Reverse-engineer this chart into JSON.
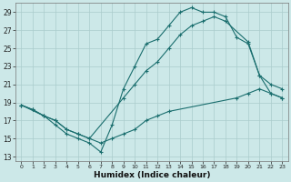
{
  "title": "",
  "xlabel": "Humidex (Indice chaleur)",
  "bg_color": "#cce8e8",
  "grid_color": "#aacccc",
  "line_color": "#1a6e6e",
  "xlim": [
    -0.5,
    23.5
  ],
  "ylim": [
    12.5,
    30.0
  ],
  "xticks": [
    0,
    1,
    2,
    3,
    4,
    5,
    6,
    7,
    8,
    9,
    10,
    11,
    12,
    13,
    14,
    15,
    16,
    17,
    18,
    19,
    20,
    21,
    22,
    23
  ],
  "yticks": [
    13,
    15,
    17,
    19,
    21,
    23,
    25,
    27,
    29
  ],
  "line1_x": [
    0,
    1,
    2,
    3,
    4,
    5,
    6,
    7,
    8,
    9,
    10,
    11,
    12,
    13,
    14,
    15,
    16,
    17,
    18,
    19,
    20,
    21,
    22,
    23
  ],
  "line1_y": [
    18.7,
    18.2,
    17.5,
    16.5,
    15.5,
    15.0,
    14.5,
    13.5,
    16.5,
    20.5,
    23.0,
    25.5,
    26.0,
    27.5,
    29.0,
    29.5,
    29.0,
    29.0,
    28.5,
    26.2,
    25.5,
    22.0,
    21.0,
    20.5
  ],
  "line2_x": [
    0,
    1,
    2,
    3,
    4,
    5,
    6,
    9,
    10,
    11,
    12,
    13,
    14,
    15,
    16,
    17,
    18,
    20,
    21,
    22,
    23
  ],
  "line2_y": [
    18.7,
    18.2,
    17.5,
    17.0,
    16.0,
    15.5,
    15.0,
    19.5,
    21.0,
    22.5,
    23.5,
    25.0,
    26.5,
    27.5,
    28.0,
    28.5,
    28.0,
    25.7,
    22.0,
    20.0,
    19.5
  ],
  "line3_x": [
    0,
    2,
    3,
    4,
    5,
    6,
    7,
    8,
    9,
    10,
    11,
    12,
    13,
    19,
    20,
    21,
    22,
    23
  ],
  "line3_y": [
    18.7,
    17.5,
    17.0,
    16.0,
    15.5,
    15.0,
    14.5,
    15.0,
    15.5,
    16.0,
    17.0,
    17.5,
    18.0,
    19.5,
    20.0,
    20.5,
    20.0,
    19.5
  ]
}
